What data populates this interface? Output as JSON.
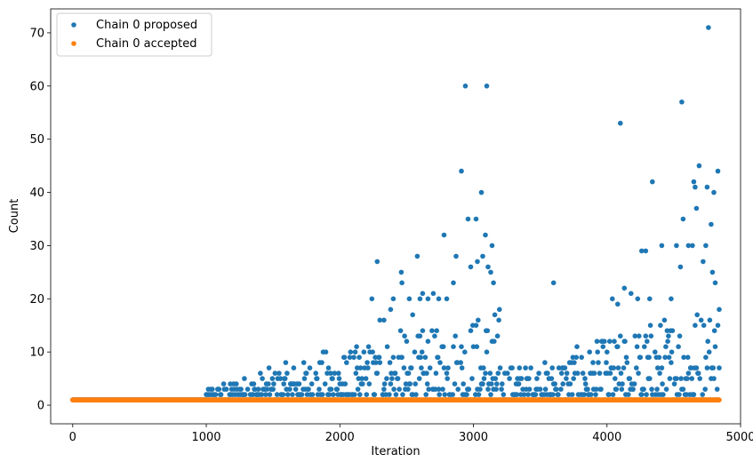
{
  "chart_data": {
    "type": "scatter",
    "title": "",
    "xlabel": "Iteration",
    "ylabel": "Count",
    "xlim": [
      -165,
      5000
    ],
    "ylim": [
      -3.5,
      74.5
    ],
    "xticks": [
      0,
      1000,
      2000,
      3000,
      4000,
      5000
    ],
    "yticks": [
      0,
      10,
      20,
      30,
      40,
      50,
      60,
      70
    ],
    "grid": false,
    "legend": {
      "placement": "top-left"
    },
    "series": [
      {
        "name": "Chain 0 proposed",
        "color": "#1f77b4",
        "description_of_bulk": "values 1 for iterations 0-1000; from 1000 to 4840 dense band from 1 up to ~5-20 rising with iteration",
        "points": [
          [
            2240,
            20
          ],
          [
            2280,
            27
          ],
          [
            2300,
            16
          ],
          [
            2330,
            16
          ],
          [
            2380,
            18
          ],
          [
            2400,
            20
          ],
          [
            2460,
            25
          ],
          [
            2465,
            23
          ],
          [
            2520,
            20
          ],
          [
            2545,
            17
          ],
          [
            2580,
            28
          ],
          [
            2600,
            20
          ],
          [
            2620,
            21
          ],
          [
            2660,
            20
          ],
          [
            2700,
            21
          ],
          [
            2740,
            20
          ],
          [
            2780,
            32
          ],
          [
            2800,
            20
          ],
          [
            2850,
            23
          ],
          [
            2870,
            28
          ],
          [
            2910,
            44
          ],
          [
            2940,
            60
          ],
          [
            2960,
            35
          ],
          [
            2980,
            26
          ],
          [
            3020,
            35
          ],
          [
            3030,
            27
          ],
          [
            3060,
            40
          ],
          [
            3070,
            28
          ],
          [
            3090,
            32
          ],
          [
            3100,
            60
          ],
          [
            3110,
            26
          ],
          [
            3130,
            25
          ],
          [
            3140,
            30
          ],
          [
            3150,
            23
          ],
          [
            3600,
            23
          ],
          [
            4040,
            20
          ],
          [
            4080,
            19
          ],
          [
            4100,
            53
          ],
          [
            4130,
            22
          ],
          [
            4180,
            21
          ],
          [
            4230,
            20
          ],
          [
            4260,
            29
          ],
          [
            4290,
            29
          ],
          [
            4320,
            20
          ],
          [
            4340,
            42
          ],
          [
            4410,
            30
          ],
          [
            4480,
            20
          ],
          [
            4520,
            30
          ],
          [
            4550,
            26
          ],
          [
            4560,
            57
          ],
          [
            4570,
            35
          ],
          [
            4610,
            30
          ],
          [
            4640,
            30
          ],
          [
            4650,
            42
          ],
          [
            4660,
            41
          ],
          [
            4670,
            37
          ],
          [
            4690,
            45
          ],
          [
            4720,
            27
          ],
          [
            4740,
            30
          ],
          [
            4750,
            41
          ],
          [
            4760,
            71
          ],
          [
            4780,
            34
          ],
          [
            4790,
            25
          ],
          [
            4800,
            40
          ],
          [
            4810,
            23
          ],
          [
            4830,
            44
          ],
          [
            4840,
            18
          ]
        ]
      },
      {
        "name": "Chain 0 accepted",
        "color": "#ff7f0e",
        "x_range": [
          0,
          4840
        ],
        "y_value": 1
      }
    ]
  }
}
